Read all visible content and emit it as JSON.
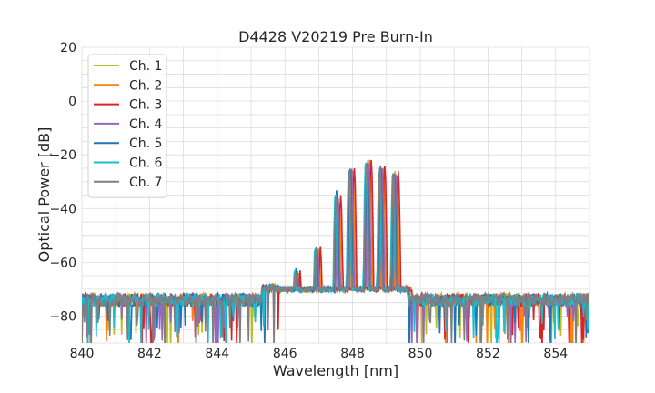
{
  "chart_data": {
    "type": "line",
    "title": "D4428 V20219 Pre Burn-In",
    "xlabel": "Wavelength [nm]",
    "ylabel": "Optical Power [dB]",
    "xlim": [
      840,
      855
    ],
    "ylim": [
      -90,
      20
    ],
    "xticks": [
      "840",
      "842",
      "844",
      "846",
      "848",
      "850",
      "852",
      "854"
    ],
    "yticks": [
      "20",
      "0",
      "−20",
      "−40",
      "−60",
      "−80"
    ],
    "grid": true,
    "legend_position": "top-left",
    "noise_floor_db": -74,
    "series": [
      {
        "name": "Ch. 1",
        "color": "#bcbd22",
        "offset_nm": 0.0,
        "peaks": [
          [
            846.35,
            -63
          ],
          [
            846.95,
            -55
          ],
          [
            847.55,
            -42
          ],
          [
            847.95,
            -26
          ],
          [
            848.45,
            -22
          ],
          [
            848.85,
            -25
          ],
          [
            849.25,
            -26
          ]
        ]
      },
      {
        "name": "Ch. 2",
        "color": "#ff7f0e",
        "offset_nm": 0.06,
        "peaks": [
          [
            846.35,
            -63
          ],
          [
            846.95,
            -54
          ],
          [
            847.55,
            -37
          ],
          [
            847.95,
            -25
          ],
          [
            848.45,
            -21
          ],
          [
            848.85,
            -24
          ],
          [
            849.25,
            -27
          ]
        ]
      },
      {
        "name": "Ch. 3",
        "color": "#d62728",
        "offset_nm": 0.1,
        "peaks": [
          [
            846.35,
            -63
          ],
          [
            846.95,
            -54
          ],
          [
            847.55,
            -35
          ],
          [
            847.95,
            -25
          ],
          [
            848.45,
            -22
          ],
          [
            848.85,
            -24
          ],
          [
            849.25,
            -26
          ]
        ]
      },
      {
        "name": "Ch. 4",
        "color": "#9467bd",
        "offset_nm": 0.02,
        "peaks": [
          [
            846.35,
            -63
          ],
          [
            846.95,
            -55
          ],
          [
            847.55,
            -36
          ],
          [
            847.95,
            -25
          ],
          [
            848.45,
            -23
          ],
          [
            848.85,
            -25
          ],
          [
            849.25,
            -27
          ]
        ]
      },
      {
        "name": "Ch. 5",
        "color": "#1f77b4",
        "offset_nm": -0.02,
        "peaks": [
          [
            846.35,
            -62
          ],
          [
            846.95,
            -54
          ],
          [
            847.55,
            -33
          ],
          [
            847.95,
            -25
          ],
          [
            848.45,
            -23
          ],
          [
            848.85,
            -24
          ],
          [
            849.25,
            -27
          ]
        ]
      },
      {
        "name": "Ch. 6",
        "color": "#17becf",
        "offset_nm": -0.06,
        "peaks": [
          [
            846.35,
            -62
          ],
          [
            846.95,
            -54
          ],
          [
            847.55,
            -34
          ],
          [
            847.95,
            -25
          ],
          [
            848.45,
            -22
          ],
          [
            848.85,
            -25
          ],
          [
            849.25,
            -26
          ]
        ]
      },
      {
        "name": "Ch. 7",
        "color": "#7f7f7f",
        "offset_nm": -0.04,
        "peaks": [
          [
            846.35,
            -63
          ],
          [
            846.95,
            -55
          ],
          [
            847.55,
            -35
          ],
          [
            847.95,
            -25
          ],
          [
            848.45,
            -23
          ],
          [
            848.85,
            -24
          ],
          [
            849.25,
            -26
          ]
        ]
      }
    ]
  }
}
